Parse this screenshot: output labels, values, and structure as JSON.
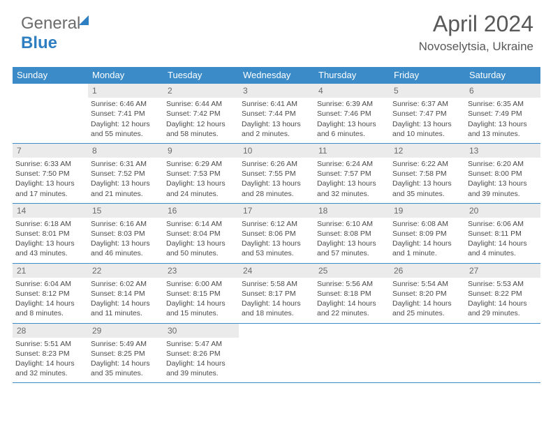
{
  "logo": {
    "part1": "General",
    "part2": "Blue"
  },
  "title": "April 2024",
  "location": "Novoselytsia, Ukraine",
  "colors": {
    "header_bg": "#3b8bc9",
    "header_text": "#ffffff",
    "daynum_bg": "#ebebeb",
    "text": "#4a4a4a",
    "border": "#3b8bc9",
    "logo_gray": "#6b6b6b",
    "logo_blue": "#2e7fc1"
  },
  "day_headers": [
    "Sunday",
    "Monday",
    "Tuesday",
    "Wednesday",
    "Thursday",
    "Friday",
    "Saturday"
  ],
  "weeks": [
    [
      {
        "n": "",
        "sr": "",
        "ss": "",
        "dl": ""
      },
      {
        "n": "1",
        "sr": "Sunrise: 6:46 AM",
        "ss": "Sunset: 7:41 PM",
        "dl": "Daylight: 12 hours and 55 minutes."
      },
      {
        "n": "2",
        "sr": "Sunrise: 6:44 AM",
        "ss": "Sunset: 7:42 PM",
        "dl": "Daylight: 12 hours and 58 minutes."
      },
      {
        "n": "3",
        "sr": "Sunrise: 6:41 AM",
        "ss": "Sunset: 7:44 PM",
        "dl": "Daylight: 13 hours and 2 minutes."
      },
      {
        "n": "4",
        "sr": "Sunrise: 6:39 AM",
        "ss": "Sunset: 7:46 PM",
        "dl": "Daylight: 13 hours and 6 minutes."
      },
      {
        "n": "5",
        "sr": "Sunrise: 6:37 AM",
        "ss": "Sunset: 7:47 PM",
        "dl": "Daylight: 13 hours and 10 minutes."
      },
      {
        "n": "6",
        "sr": "Sunrise: 6:35 AM",
        "ss": "Sunset: 7:49 PM",
        "dl": "Daylight: 13 hours and 13 minutes."
      }
    ],
    [
      {
        "n": "7",
        "sr": "Sunrise: 6:33 AM",
        "ss": "Sunset: 7:50 PM",
        "dl": "Daylight: 13 hours and 17 minutes."
      },
      {
        "n": "8",
        "sr": "Sunrise: 6:31 AM",
        "ss": "Sunset: 7:52 PM",
        "dl": "Daylight: 13 hours and 21 minutes."
      },
      {
        "n": "9",
        "sr": "Sunrise: 6:29 AM",
        "ss": "Sunset: 7:53 PM",
        "dl": "Daylight: 13 hours and 24 minutes."
      },
      {
        "n": "10",
        "sr": "Sunrise: 6:26 AM",
        "ss": "Sunset: 7:55 PM",
        "dl": "Daylight: 13 hours and 28 minutes."
      },
      {
        "n": "11",
        "sr": "Sunrise: 6:24 AM",
        "ss": "Sunset: 7:57 PM",
        "dl": "Daylight: 13 hours and 32 minutes."
      },
      {
        "n": "12",
        "sr": "Sunrise: 6:22 AM",
        "ss": "Sunset: 7:58 PM",
        "dl": "Daylight: 13 hours and 35 minutes."
      },
      {
        "n": "13",
        "sr": "Sunrise: 6:20 AM",
        "ss": "Sunset: 8:00 PM",
        "dl": "Daylight: 13 hours and 39 minutes."
      }
    ],
    [
      {
        "n": "14",
        "sr": "Sunrise: 6:18 AM",
        "ss": "Sunset: 8:01 PM",
        "dl": "Daylight: 13 hours and 43 minutes."
      },
      {
        "n": "15",
        "sr": "Sunrise: 6:16 AM",
        "ss": "Sunset: 8:03 PM",
        "dl": "Daylight: 13 hours and 46 minutes."
      },
      {
        "n": "16",
        "sr": "Sunrise: 6:14 AM",
        "ss": "Sunset: 8:04 PM",
        "dl": "Daylight: 13 hours and 50 minutes."
      },
      {
        "n": "17",
        "sr": "Sunrise: 6:12 AM",
        "ss": "Sunset: 8:06 PM",
        "dl": "Daylight: 13 hours and 53 minutes."
      },
      {
        "n": "18",
        "sr": "Sunrise: 6:10 AM",
        "ss": "Sunset: 8:08 PM",
        "dl": "Daylight: 13 hours and 57 minutes."
      },
      {
        "n": "19",
        "sr": "Sunrise: 6:08 AM",
        "ss": "Sunset: 8:09 PM",
        "dl": "Daylight: 14 hours and 1 minute."
      },
      {
        "n": "20",
        "sr": "Sunrise: 6:06 AM",
        "ss": "Sunset: 8:11 PM",
        "dl": "Daylight: 14 hours and 4 minutes."
      }
    ],
    [
      {
        "n": "21",
        "sr": "Sunrise: 6:04 AM",
        "ss": "Sunset: 8:12 PM",
        "dl": "Daylight: 14 hours and 8 minutes."
      },
      {
        "n": "22",
        "sr": "Sunrise: 6:02 AM",
        "ss": "Sunset: 8:14 PM",
        "dl": "Daylight: 14 hours and 11 minutes."
      },
      {
        "n": "23",
        "sr": "Sunrise: 6:00 AM",
        "ss": "Sunset: 8:15 PM",
        "dl": "Daylight: 14 hours and 15 minutes."
      },
      {
        "n": "24",
        "sr": "Sunrise: 5:58 AM",
        "ss": "Sunset: 8:17 PM",
        "dl": "Daylight: 14 hours and 18 minutes."
      },
      {
        "n": "25",
        "sr": "Sunrise: 5:56 AM",
        "ss": "Sunset: 8:18 PM",
        "dl": "Daylight: 14 hours and 22 minutes."
      },
      {
        "n": "26",
        "sr": "Sunrise: 5:54 AM",
        "ss": "Sunset: 8:20 PM",
        "dl": "Daylight: 14 hours and 25 minutes."
      },
      {
        "n": "27",
        "sr": "Sunrise: 5:53 AM",
        "ss": "Sunset: 8:22 PM",
        "dl": "Daylight: 14 hours and 29 minutes."
      }
    ],
    [
      {
        "n": "28",
        "sr": "Sunrise: 5:51 AM",
        "ss": "Sunset: 8:23 PM",
        "dl": "Daylight: 14 hours and 32 minutes."
      },
      {
        "n": "29",
        "sr": "Sunrise: 5:49 AM",
        "ss": "Sunset: 8:25 PM",
        "dl": "Daylight: 14 hours and 35 minutes."
      },
      {
        "n": "30",
        "sr": "Sunrise: 5:47 AM",
        "ss": "Sunset: 8:26 PM",
        "dl": "Daylight: 14 hours and 39 minutes."
      },
      {
        "n": "",
        "sr": "",
        "ss": "",
        "dl": ""
      },
      {
        "n": "",
        "sr": "",
        "ss": "",
        "dl": ""
      },
      {
        "n": "",
        "sr": "",
        "ss": "",
        "dl": ""
      },
      {
        "n": "",
        "sr": "",
        "ss": "",
        "dl": ""
      }
    ]
  ]
}
